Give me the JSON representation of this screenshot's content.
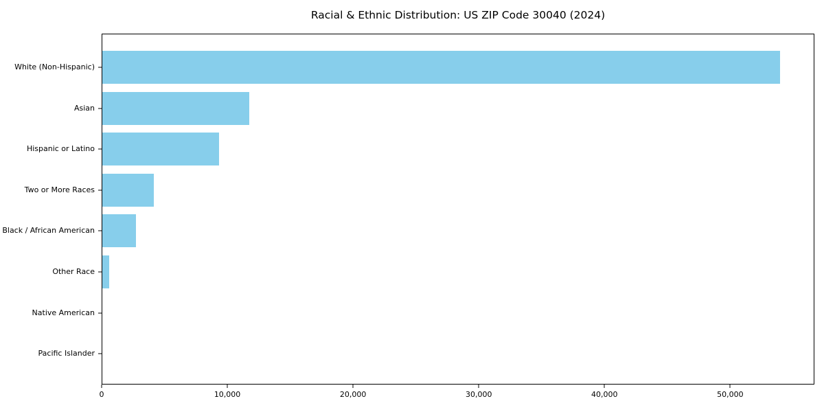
{
  "figure": {
    "title": "Racial & Ethnic Distribution: US ZIP Code 30040 (2024)"
  },
  "chart_data": {
    "type": "bar",
    "orientation": "horizontal",
    "title": "Racial & Ethnic Distribution: US ZIP Code 30040 (2024)",
    "categories": [
      "White (Non-Hispanic)",
      "Asian",
      "Hispanic or Latino",
      "Two or More Races",
      "Black / African American",
      "Other Race",
      "Native American",
      "Pacific Islander"
    ],
    "values": [
      54000,
      11700,
      9300,
      4100,
      2700,
      550,
      0,
      0
    ],
    "xlabel": "",
    "ylabel": "",
    "xlim": [
      0,
      56700
    ],
    "xticks": [
      0,
      10000,
      20000,
      30000,
      40000,
      50000
    ],
    "xtick_labels": [
      "0",
      "10,000",
      "20,000",
      "30,000",
      "40,000",
      "50,000"
    ],
    "bar_color": "#87CEEB",
    "axis_color": "#000000",
    "background_color": "#ffffff",
    "grid": false,
    "legend": "none"
  }
}
